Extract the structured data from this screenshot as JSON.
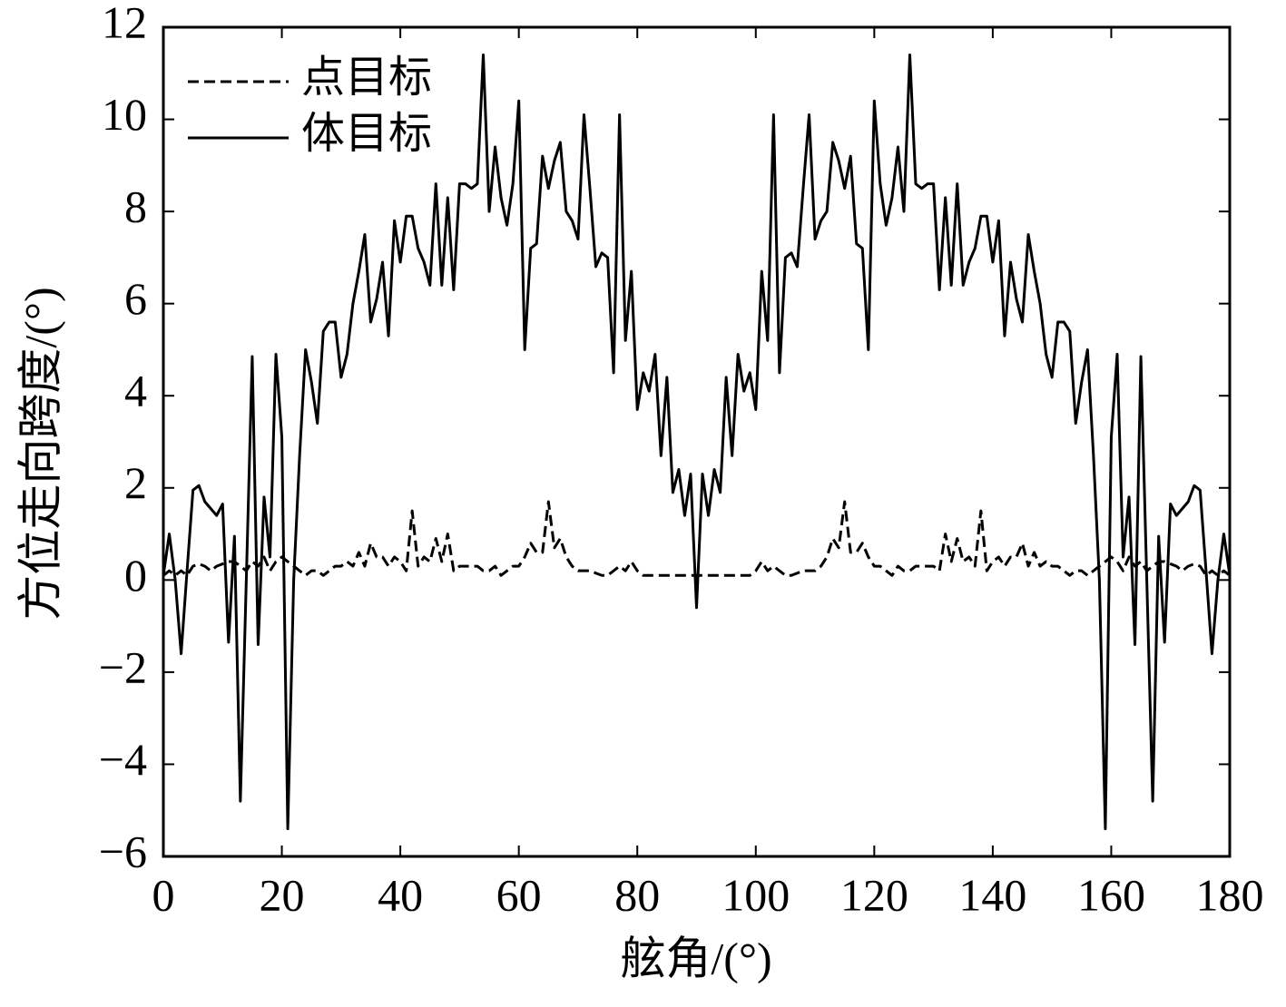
{
  "chart_data": {
    "type": "line",
    "x_label": "舷角/(°)",
    "y_label": "方位走向跨度/(°)",
    "x": [
      0,
      1,
      2,
      3,
      4,
      5,
      6,
      7,
      8,
      9,
      10,
      11,
      12,
      13,
      14,
      15,
      16,
      17,
      18,
      19,
      20,
      21,
      22,
      23,
      24,
      25,
      26,
      27,
      28,
      29,
      30,
      31,
      32,
      33,
      34,
      35,
      36,
      37,
      38,
      39,
      40,
      41,
      42,
      43,
      44,
      45,
      46,
      47,
      48,
      49,
      50,
      51,
      52,
      53,
      54,
      55,
      56,
      57,
      58,
      59,
      60,
      61,
      62,
      63,
      64,
      65,
      66,
      67,
      68,
      69,
      70,
      71,
      72,
      73,
      74,
      75,
      76,
      77,
      78,
      79,
      80,
      81,
      82,
      83,
      84,
      85,
      86,
      87,
      88,
      89,
      90,
      91,
      92,
      93,
      94,
      95,
      96,
      97,
      98,
      99,
      100,
      101,
      102,
      103,
      104,
      105,
      106,
      107,
      108,
      109,
      110,
      111,
      112,
      113,
      114,
      115,
      116,
      117,
      118,
      119,
      120,
      121,
      122,
      123,
      124,
      125,
      126,
      127,
      128,
      129,
      130,
      131,
      132,
      133,
      134,
      135,
      136,
      137,
      138,
      139,
      140,
      141,
      142,
      143,
      144,
      145,
      146,
      147,
      148,
      149,
      150,
      151,
      152,
      153,
      154,
      155,
      156,
      157,
      158,
      159,
      160,
      161,
      162,
      163,
      164,
      165,
      166,
      167,
      168,
      169,
      170,
      171,
      172,
      173,
      174,
      175,
      176,
      177,
      178,
      179,
      180
    ],
    "series": [
      {
        "name": "点目标",
        "color": "#000000",
        "dash": true,
        "values": [
          0.1,
          0.2,
          0.1,
          0.2,
          0.1,
          0.3,
          0.35,
          0.3,
          0.2,
          0.3,
          0.35,
          0.4,
          0.4,
          0.3,
          0.2,
          0.4,
          0.3,
          0.5,
          0.2,
          0.4,
          0.5,
          0.4,
          0.3,
          0.2,
          0.1,
          0.2,
          0.2,
          0.1,
          0.2,
          0.3,
          0.3,
          0.4,
          0.3,
          0.6,
          0.3,
          0.8,
          0.5,
          0.5,
          0.3,
          0.5,
          0.4,
          0.2,
          1.5,
          0.3,
          0.5,
          0.4,
          0.9,
          0.4,
          1.0,
          0.2,
          0.3,
          0.3,
          0.3,
          0.3,
          0.2,
          0.2,
          0.3,
          0.1,
          0.2,
          0.3,
          0.3,
          0.5,
          0.8,
          0.6,
          0.6,
          1.7,
          0.7,
          0.9,
          0.5,
          0.3,
          0.2,
          0.2,
          0.2,
          0.15,
          0.1,
          0.1,
          0.2,
          0.3,
          0.2,
          0.4,
          0.2,
          0.1,
          0.1,
          0.1,
          0.1,
          0.1,
          0.1,
          0.1,
          0.1,
          0.1,
          0.1,
          0.1,
          0.1,
          0.1,
          0.1,
          0.1,
          0.1,
          0.1,
          0.1,
          0.1,
          0.2,
          0.4,
          0.2,
          0.3,
          0.2,
          0.1,
          0.1,
          0.15,
          0.2,
          0.2,
          0.2,
          0.3,
          0.5,
          0.9,
          0.7,
          1.7,
          0.6,
          0.6,
          0.8,
          0.5,
          0.3,
          0.3,
          0.2,
          0.1,
          0.3,
          0.2,
          0.2,
          0.3,
          0.3,
          0.3,
          0.3,
          0.2,
          1.0,
          0.4,
          0.9,
          0.4,
          0.5,
          0.3,
          1.5,
          0.2,
          0.4,
          0.5,
          0.3,
          0.5,
          0.5,
          0.8,
          0.3,
          0.6,
          0.3,
          0.4,
          0.3,
          0.3,
          0.2,
          0.1,
          0.2,
          0.2,
          0.1,
          0.2,
          0.3,
          0.4,
          0.5,
          0.4,
          0.2,
          0.5,
          0.3,
          0.4,
          0.2,
          0.3,
          0.4,
          0.4,
          0.35,
          0.3,
          0.2,
          0.3,
          0.35,
          0.3,
          0.1,
          0.2,
          0.1,
          0.2,
          0.1
        ]
      },
      {
        "name": "体目标",
        "color": "#000000",
        "dash": false,
        "values": [
          0.1,
          1.0,
          0.0,
          -1.6,
          0.2,
          1.95,
          2.05,
          1.7,
          1.55,
          1.4,
          1.65,
          -1.35,
          0.95,
          -4.8,
          0.0,
          4.85,
          -1.4,
          1.8,
          0.5,
          4.9,
          3.1,
          -5.4,
          0.0,
          2.7,
          5.0,
          4.3,
          3.4,
          5.4,
          5.6,
          5.6,
          4.4,
          4.9,
          6.0,
          6.7,
          7.5,
          5.6,
          6.1,
          6.9,
          5.3,
          7.8,
          6.9,
          7.9,
          7.9,
          7.2,
          6.9,
          6.4,
          8.6,
          6.4,
          8.3,
          6.3,
          8.6,
          8.6,
          8.5,
          8.6,
          11.4,
          8.0,
          9.4,
          8.3,
          7.7,
          8.6,
          10.4,
          5.0,
          7.2,
          7.3,
          9.2,
          8.5,
          9.1,
          9.5,
          8.0,
          7.8,
          7.4,
          10.1,
          8.5,
          6.8,
          7.1,
          7.0,
          4.5,
          10.1,
          5.2,
          6.7,
          3.7,
          4.5,
          4.1,
          4.9,
          2.7,
          4.4,
          1.9,
          2.4,
          1.4,
          2.3,
          -0.6,
          2.3,
          1.4,
          2.4,
          1.9,
          4.4,
          2.7,
          4.9,
          4.1,
          4.5,
          3.7,
          6.7,
          5.2,
          10.1,
          4.5,
          7.0,
          7.1,
          6.8,
          8.5,
          10.1,
          7.4,
          7.8,
          8.0,
          9.5,
          9.1,
          8.5,
          9.2,
          7.3,
          7.2,
          5.0,
          10.4,
          8.6,
          7.7,
          8.3,
          9.4,
          8.0,
          11.4,
          8.6,
          8.5,
          8.6,
          8.6,
          6.3,
          8.3,
          6.4,
          8.6,
          6.4,
          6.9,
          7.2,
          7.9,
          7.9,
          6.9,
          7.8,
          5.3,
          6.9,
          6.1,
          5.6,
          7.5,
          6.7,
          6.0,
          4.9,
          4.4,
          5.6,
          5.6,
          5.4,
          3.4,
          4.3,
          5.0,
          2.7,
          0.0,
          -5.4,
          3.1,
          4.9,
          0.5,
          1.8,
          -1.4,
          4.85,
          0.0,
          -4.8,
          0.95,
          -1.35,
          1.65,
          1.4,
          1.55,
          1.7,
          2.05,
          1.95,
          0.2,
          -1.6,
          0.0,
          1.0,
          0.1
        ]
      }
    ],
    "xlim": [
      0,
      180
    ],
    "xticks": [
      0,
      20,
      40,
      60,
      80,
      100,
      120,
      140,
      160,
      180
    ],
    "ylim": [
      -6,
      12
    ],
    "yticks": [
      {
        "value": -6,
        "label": "−6"
      },
      {
        "value": -4,
        "label": "−4"
      },
      {
        "value": -2,
        "label": "−2"
      },
      0,
      2,
      4,
      6,
      8,
      10,
      12
    ],
    "legend": "upper-left"
  }
}
